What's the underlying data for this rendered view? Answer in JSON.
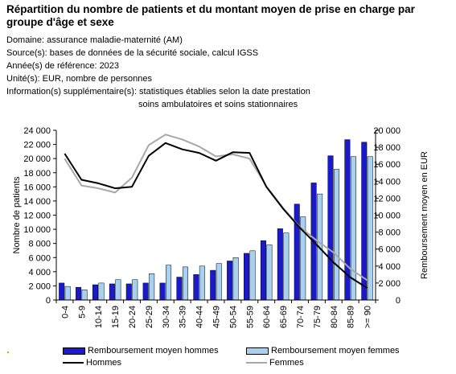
{
  "title": "Répartition du nombre de patients et du montant moyen de prise en charge par groupe d'âge et sexe",
  "meta": {
    "domaine": "Domaine: assurance maladie-maternité (AM)",
    "sources": "Source(s): bases de données de la sécurité sociale, calcul IGSS",
    "annee": "Année(s) de référence: 2023",
    "unites": "Unité(s): EUR, nombre de personnes",
    "info_line1": "Information(s) supplémentaire(s): statistiques établies selon la date prestation",
    "info_line2": "soins ambulatoires et soins stationnaires"
  },
  "colors": {
    "bar_hommes": "#1a1acc",
    "bar_femmes": "#a8d0f0",
    "line_hommes": "#000000",
    "line_femmes": "#a8a8a8",
    "accent_dot": "#c8b400"
  },
  "chart_data": {
    "type": "bar",
    "categories": [
      "0-4",
      "5-9",
      "10-14",
      "15-19",
      "20-24",
      "25-29",
      "30-34",
      "35-39",
      "40-44",
      "45-49",
      "50-54",
      "55-59",
      "60-64",
      "65-69",
      "70-74",
      "75-79",
      "80-84",
      "85-89",
      ">= 90"
    ],
    "ylabel": "Nombre de patients",
    "y2label": "Remboursement moyen en EUR",
    "ylim": [
      0,
      24000
    ],
    "y2lim": [
      0,
      20000
    ],
    "yticks": [
      "0",
      "2 000",
      "4 000",
      "6 000",
      "8 000",
      "10 000",
      "12 000",
      "14 000",
      "16 000",
      "18 000",
      "20 000",
      "22 000",
      "24 000"
    ],
    "y2ticks": [
      "0",
      "2 000",
      "4 000",
      "6 000",
      "8 000",
      "10 000",
      "12 000",
      "14 000",
      "16 000",
      "18 000",
      "20 000"
    ],
    "series": [
      {
        "name": "Remboursement moyen hommes",
        "kind": "bar",
        "axis": "right",
        "values": [
          2000,
          1500,
          1800,
          1900,
          1900,
          2000,
          2000,
          2700,
          3000,
          3500,
          4600,
          5500,
          7000,
          8400,
          11300,
          13800,
          17000,
          18900,
          18600
        ]
      },
      {
        "name": "Remboursement moyen femmes",
        "kind": "bar",
        "axis": "right",
        "values": [
          1600,
          1200,
          2000,
          2400,
          2400,
          3100,
          4100,
          3900,
          4000,
          4300,
          5000,
          5800,
          6500,
          7900,
          9800,
          12500,
          15400,
          16900,
          16900
        ]
      },
      {
        "name": "Hommes",
        "kind": "line",
        "axis": "left",
        "values": [
          20700,
          17000,
          16500,
          15800,
          16000,
          20400,
          22200,
          21300,
          20800,
          19700,
          20900,
          20800,
          16000,
          12900,
          10200,
          7800,
          5300,
          3200,
          1700
        ]
      },
      {
        "name": "Femmes",
        "kind": "line",
        "axis": "left",
        "values": [
          20000,
          16200,
          15800,
          15200,
          17300,
          21900,
          23400,
          22700,
          21700,
          20300,
          20600,
          20000,
          16100,
          13000,
          10300,
          8400,
          6700,
          4400,
          2800
        ]
      }
    ],
    "grid": false,
    "legend": "bottom"
  }
}
